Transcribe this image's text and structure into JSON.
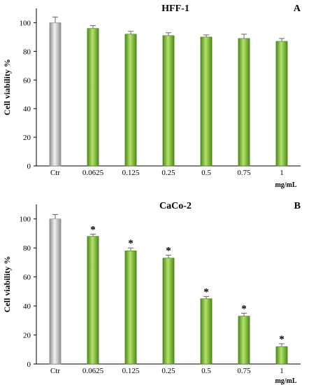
{
  "chart_data": [
    {
      "type": "bar",
      "panel_letter": "A",
      "title": "HFF-1",
      "ylabel": "Cell viability %",
      "xlabel": "",
      "x_unit": "mg/mL",
      "categories": [
        "Ctr",
        "0.0625",
        "0.125",
        "0.25",
        "0.5",
        "0.75",
        "1"
      ],
      "values": [
        100,
        96,
        92,
        91,
        90,
        89,
        87
      ],
      "errors": [
        4,
        2,
        2,
        2,
        1.5,
        3,
        2
      ],
      "significant": [
        false,
        false,
        false,
        false,
        false,
        false,
        false
      ],
      "significance_marker": "*",
      "bar_colors": [
        "#c8c8c8",
        "#8cc83c",
        "#8cc83c",
        "#8cc83c",
        "#8cc83c",
        "#8cc83c",
        "#8cc83c"
      ],
      "ylim": [
        0,
        110
      ],
      "yticks": [
        0,
        20,
        40,
        60,
        80,
        100
      ],
      "grid": false
    },
    {
      "type": "bar",
      "panel_letter": "B",
      "title": "CaCo-2",
      "ylabel": "Cell viability %",
      "xlabel": "",
      "x_unit": "mg/mL",
      "categories": [
        "Ctr",
        "0.0625",
        "0.125",
        "0.25",
        "0.5",
        "0.75",
        "1"
      ],
      "values": [
        100,
        88,
        78,
        73,
        45,
        33,
        12
      ],
      "errors": [
        3,
        1.5,
        2,
        2,
        1.5,
        2,
        2
      ],
      "significant": [
        false,
        true,
        true,
        true,
        true,
        true,
        true
      ],
      "significance_marker": "*",
      "bar_colors": [
        "#c8c8c8",
        "#8cc83c",
        "#8cc83c",
        "#8cc83c",
        "#8cc83c",
        "#8cc83c",
        "#8cc83c"
      ],
      "ylim": [
        0,
        110
      ],
      "yticks": [
        0,
        20,
        40,
        60,
        80,
        100
      ],
      "grid": false
    }
  ]
}
